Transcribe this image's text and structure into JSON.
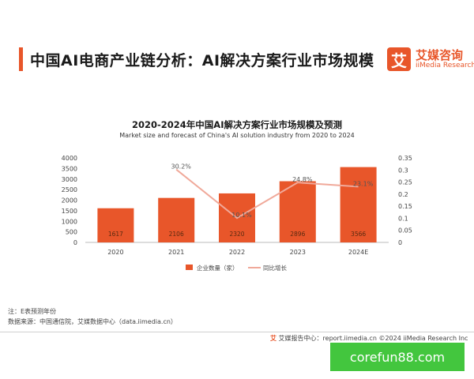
{
  "header": {
    "title": "中国AI电商产业链分析：AI解决方案行业市场规模",
    "logo_mark": "艾",
    "logo_cn": "艾媒咨询",
    "logo_en": "iiMedia Research"
  },
  "chart_data": {
    "type": "bar",
    "title": "2020-2024年中国AI解决方案行业市场规模及预测",
    "subtitle": "Market size and forecast of China's AI solution industry from 2020 to 2024",
    "categories": [
      "2020",
      "2021",
      "2022",
      "2023",
      "2024E"
    ],
    "series": [
      {
        "name": "企业数量（家）",
        "type": "bar",
        "axis": "left",
        "values": [
          1617,
          2106,
          2320,
          2896,
          3566
        ],
        "labels": [
          "1617",
          "2106",
          "2320",
          "2896",
          "3566"
        ],
        "color": "#e8562a"
      },
      {
        "name": "同比增长",
        "type": "line",
        "axis": "right",
        "values": [
          null,
          0.302,
          0.101,
          0.248,
          0.231
        ],
        "labels": [
          "",
          "30.2%",
          "10.1%",
          "24.8%",
          "23.1%"
        ],
        "color": "#f0a99a"
      }
    ],
    "y_left": {
      "min": 0,
      "max": 4000,
      "ticks": [
        "0",
        "500",
        "1000",
        "1500",
        "2000",
        "2500",
        "3000",
        "3500",
        "4000"
      ]
    },
    "y_right": {
      "min": 0,
      "max": 0.35,
      "ticks": [
        "0",
        "0.05",
        "0.1",
        "0.15",
        "0.2",
        "0.25",
        "0.3",
        "0.35"
      ]
    },
    "grid": false,
    "legend": "bottom"
  },
  "notes": {
    "line1": "注：E表预测年份",
    "line2": "数据来源：中国通信院，艾媒数据中心（data.iimedia.cn）"
  },
  "footer": {
    "mark": "艾",
    "text": "艾媒报告中心：report.iimedia.cn    ©2024  iiMedia Research  Inc"
  },
  "watermark": "corefun88.com"
}
